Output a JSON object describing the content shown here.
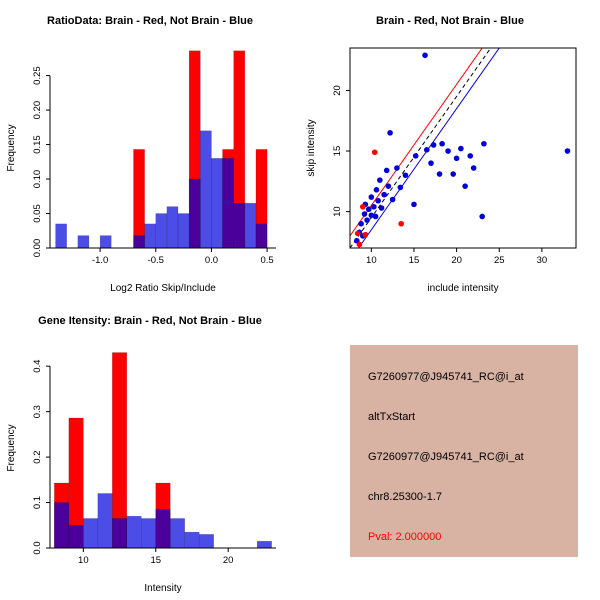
{
  "chart_data": [
    {
      "id": "ratio-histogram",
      "type": "bar",
      "title": "RatioData: Brain - Red, Not Brain - Blue",
      "xlabel": "Log2 Ratio Skip/Include",
      "ylabel": "Frequency",
      "xlim": [
        -1.45,
        0.58
      ],
      "ylim": [
        0,
        0.29
      ],
      "xticks": [
        -1.0,
        -0.5,
        0.0,
        0.5
      ],
      "xtick_labels": [
        "-1.0",
        "-0.5",
        "0.0",
        "0.5"
      ],
      "yticks": [
        0.0,
        0.05,
        0.1,
        0.15,
        0.2,
        0.25
      ],
      "ytick_labels": [
        "0.00",
        "0.05",
        "0.10",
        "0.15",
        "0.20",
        "0.25"
      ],
      "grid": false,
      "box": false,
      "bin_width": 0.1,
      "series": [
        {
          "name": "brain-red",
          "color": "#FF0000",
          "opacity": 1,
          "bins": [
            {
              "x": -0.7,
              "h": 0.143
            },
            {
              "x": -0.2,
              "h": 0.286
            },
            {
              "x": 0.1,
              "h": 0.143
            },
            {
              "x": 0.2,
              "h": 0.286
            },
            {
              "x": 0.4,
              "h": 0.143
            }
          ]
        },
        {
          "name": "notbrain-blue",
          "color": "#0000DD",
          "opacity": 0.7,
          "bins": [
            {
              "x": -1.4,
              "h": 0.035
            },
            {
              "x": -1.2,
              "h": 0.018
            },
            {
              "x": -1.0,
              "h": 0.018
            },
            {
              "x": -0.7,
              "h": 0.018
            },
            {
              "x": -0.6,
              "h": 0.035
            },
            {
              "x": -0.5,
              "h": 0.05
            },
            {
              "x": -0.4,
              "h": 0.06
            },
            {
              "x": -0.3,
              "h": 0.05
            },
            {
              "x": -0.2,
              "h": 0.1
            },
            {
              "x": -0.1,
              "h": 0.17
            },
            {
              "x": 0.0,
              "h": 0.13
            },
            {
              "x": 0.1,
              "h": 0.13
            },
            {
              "x": 0.2,
              "h": 0.065
            },
            {
              "x": 0.3,
              "h": 0.065
            },
            {
              "x": 0.4,
              "h": 0.035
            }
          ]
        }
      ]
    },
    {
      "id": "intensity-scatter",
      "type": "scatter",
      "title": "Brain - Red, Not Brain - Blue",
      "xlabel": "include intensity",
      "ylabel": "skip intensity",
      "xlim": [
        7.5,
        34
      ],
      "ylim": [
        7,
        23.5
      ],
      "xticks": [
        10,
        15,
        20,
        25,
        30
      ],
      "xtick_labels": [
        "10",
        "15",
        "20",
        "25",
        "30"
      ],
      "yticks": [
        10,
        15,
        20
      ],
      "ytick_labels": [
        "10",
        "15",
        "20"
      ],
      "grid": false,
      "box": true,
      "lines": [
        {
          "name": "brain-fit",
          "slope": 1,
          "intercept": 0.5,
          "color": "#FF0000",
          "dash": ""
        },
        {
          "name": "identity",
          "slope": 1,
          "intercept": -0.5,
          "color": "#000000",
          "dash": "4,3"
        },
        {
          "name": "notbrain-fit",
          "slope": 1,
          "intercept": -1.5,
          "color": "#0000DD",
          "dash": ""
        }
      ],
      "series": [
        {
          "name": "notbrain-blue",
          "color": "#0000DD",
          "points": [
            [
              8.3,
              7.6
            ],
            [
              8.6,
              8.3
            ],
            [
              8.8,
              9.0
            ],
            [
              9.0,
              8.0
            ],
            [
              9.2,
              9.8
            ],
            [
              9.3,
              10.6
            ],
            [
              9.5,
              9.3
            ],
            [
              9.7,
              10.2
            ],
            [
              10.0,
              9.7
            ],
            [
              10.0,
              11.2
            ],
            [
              10.3,
              10.4
            ],
            [
              10.5,
              9.6
            ],
            [
              10.6,
              11.8
            ],
            [
              10.8,
              10.9
            ],
            [
              11.0,
              12.6
            ],
            [
              11.2,
              10.3
            ],
            [
              11.5,
              11.4
            ],
            [
              11.8,
              13.4
            ],
            [
              12.0,
              12.1
            ],
            [
              12.2,
              16.5
            ],
            [
              12.5,
              11.0
            ],
            [
              13.0,
              13.6
            ],
            [
              13.4,
              12.0
            ],
            [
              14.0,
              13.0
            ],
            [
              15.0,
              10.6
            ],
            [
              15.2,
              14.6
            ],
            [
              16.3,
              22.9
            ],
            [
              16.5,
              15.1
            ],
            [
              17.0,
              14.0
            ],
            [
              17.3,
              15.5
            ],
            [
              18.0,
              13.1
            ],
            [
              18.3,
              15.6
            ],
            [
              19.0,
              15.0
            ],
            [
              19.6,
              13.1
            ],
            [
              20.0,
              14.4
            ],
            [
              20.5,
              15.2
            ],
            [
              21.0,
              12.1
            ],
            [
              21.6,
              14.6
            ],
            [
              22.0,
              13.6
            ],
            [
              23.0,
              9.6
            ],
            [
              23.2,
              15.6
            ],
            [
              33.0,
              15.0
            ]
          ]
        },
        {
          "name": "brain-red",
          "color": "#FF0000",
          "points": [
            [
              8.4,
              8.2
            ],
            [
              8.6,
              7.3
            ],
            [
              9.0,
              10.4
            ],
            [
              9.3,
              8.1
            ],
            [
              10.4,
              14.9
            ],
            [
              13.5,
              9.0
            ]
          ]
        }
      ]
    },
    {
      "id": "gene-intensity-histogram",
      "type": "bar",
      "title": "Gene Itensity: Brain - Red, Not Brain - Blue",
      "xlabel": "Intensity",
      "ylabel": "Frequency",
      "xlim": [
        7.7,
        23.3
      ],
      "ylim": [
        0,
        0.44
      ],
      "xticks": [
        10,
        15,
        20
      ],
      "xtick_labels": [
        "10",
        "15",
        "20"
      ],
      "yticks": [
        0.0,
        0.1,
        0.2,
        0.3,
        0.4
      ],
      "ytick_labels": [
        "0.0",
        "0.1",
        "0.2",
        "0.3",
        "0.4"
      ],
      "grid": false,
      "box": false,
      "bin_width": 1,
      "series": [
        {
          "name": "brain-red",
          "color": "#FF0000",
          "opacity": 1,
          "bins": [
            {
              "x": 8,
              "h": 0.143
            },
            {
              "x": 9,
              "h": 0.286
            },
            {
              "x": 12,
              "h": 0.43
            },
            {
              "x": 15,
              "h": 0.143
            }
          ]
        },
        {
          "name": "notbrain-blue",
          "color": "#0000DD",
          "opacity": 0.7,
          "bins": [
            {
              "x": 8,
              "h": 0.1
            },
            {
              "x": 9,
              "h": 0.05
            },
            {
              "x": 10,
              "h": 0.065
            },
            {
              "x": 11,
              "h": 0.12
            },
            {
              "x": 12,
              "h": 0.065
            },
            {
              "x": 13,
              "h": 0.07
            },
            {
              "x": 14,
              "h": 0.065
            },
            {
              "x": 15,
              "h": 0.085
            },
            {
              "x": 16,
              "h": 0.065
            },
            {
              "x": 17,
              "h": 0.035
            },
            {
              "x": 18,
              "h": 0.03
            },
            {
              "x": 22,
              "h": 0.015
            }
          ]
        }
      ]
    }
  ],
  "info_panel": {
    "bg": "#D8B2A3",
    "lines": [
      "G7260977@J945741_RC@i_at",
      "altTxStart",
      "G7260977@J945741_RC@i_at",
      "chr8.25300-1.7"
    ],
    "pval": "Pval: 2.000000",
    "pval_color": "#FF0000"
  }
}
